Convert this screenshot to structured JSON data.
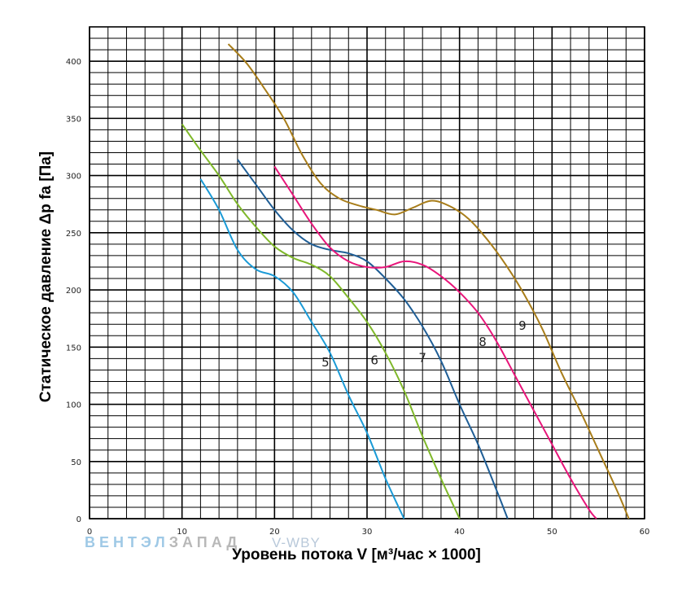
{
  "chart_data": {
    "type": "line",
    "xlabel": "Уровень потока V [м³/час × 1000]",
    "ylabel": "Статическое давление Δp fa [Па]",
    "xlim": [
      0,
      60
    ],
    "ylim": [
      0,
      430
    ],
    "x_ticks": [
      0,
      10,
      20,
      30,
      40,
      50,
      60
    ],
    "y_ticks": [
      0,
      50,
      100,
      150,
      200,
      250,
      300,
      350,
      400
    ],
    "grid": true,
    "series": [
      {
        "name": "5",
        "color": "#1a9ad6",
        "points": [
          [
            12,
            297
          ],
          [
            14,
            270
          ],
          [
            16,
            235
          ],
          [
            18,
            218
          ],
          [
            20,
            212
          ],
          [
            22,
            198
          ],
          [
            24,
            172
          ],
          [
            26,
            145
          ],
          [
            28,
            108
          ],
          [
            30,
            75
          ],
          [
            32,
            35
          ],
          [
            34,
            0
          ]
        ]
      },
      {
        "name": "6",
        "color": "#7fb82a",
        "points": [
          [
            10,
            345
          ],
          [
            12,
            322
          ],
          [
            14,
            300
          ],
          [
            16,
            275
          ],
          [
            18,
            255
          ],
          [
            20,
            238
          ],
          [
            22,
            228
          ],
          [
            24,
            222
          ],
          [
            26,
            212
          ],
          [
            28,
            193
          ],
          [
            30,
            172
          ],
          [
            32,
            145
          ],
          [
            34,
            112
          ],
          [
            36,
            72
          ],
          [
            38,
            35
          ],
          [
            40,
            0
          ]
        ]
      },
      {
        "name": "7",
        "color": "#1f5e96",
        "points": [
          [
            16,
            314
          ],
          [
            18,
            292
          ],
          [
            20,
            270
          ],
          [
            22,
            252
          ],
          [
            24,
            240
          ],
          [
            26,
            235
          ],
          [
            28,
            232
          ],
          [
            30,
            225
          ],
          [
            32,
            210
          ],
          [
            34,
            192
          ],
          [
            36,
            168
          ],
          [
            38,
            138
          ],
          [
            40,
            100
          ],
          [
            42,
            65
          ],
          [
            44,
            25
          ],
          [
            45.2,
            0
          ]
        ]
      },
      {
        "name": "8",
        "color": "#e8157a",
        "points": [
          [
            20,
            308
          ],
          [
            22,
            283
          ],
          [
            24,
            258
          ],
          [
            26,
            237
          ],
          [
            28,
            225
          ],
          [
            30,
            220
          ],
          [
            32,
            220
          ],
          [
            34,
            225
          ],
          [
            36,
            222
          ],
          [
            38,
            212
          ],
          [
            40,
            198
          ],
          [
            42,
            180
          ],
          [
            44,
            155
          ],
          [
            46,
            125
          ],
          [
            48,
            95
          ],
          [
            50,
            65
          ],
          [
            52,
            35
          ],
          [
            54,
            8
          ],
          [
            54.8,
            0
          ]
        ]
      },
      {
        "name": "9",
        "color": "#a87d1a",
        "points": [
          [
            15,
            415
          ],
          [
            17,
            398
          ],
          [
            19,
            375
          ],
          [
            21,
            350
          ],
          [
            23,
            318
          ],
          [
            25,
            293
          ],
          [
            27,
            280
          ],
          [
            29,
            274
          ],
          [
            31,
            270
          ],
          [
            33,
            266
          ],
          [
            35,
            272
          ],
          [
            37,
            278
          ],
          [
            39,
            273
          ],
          [
            41,
            262
          ],
          [
            43,
            244
          ],
          [
            45,
            222
          ],
          [
            47,
            196
          ],
          [
            49,
            165
          ],
          [
            51,
            128
          ],
          [
            53,
            95
          ],
          [
            55,
            60
          ],
          [
            57,
            25
          ],
          [
            58.3,
            0
          ]
        ]
      }
    ],
    "labels": [
      {
        "text": "5",
        "x": 25.5,
        "y": 133
      },
      {
        "text": "6",
        "x": 30.8,
        "y": 135
      },
      {
        "text": "7",
        "x": 36.0,
        "y": 137
      },
      {
        "text": "8",
        "x": 42.5,
        "y": 151
      },
      {
        "text": "9",
        "x": 46.8,
        "y": 165
      }
    ]
  },
  "watermark": {
    "brand_a": "ВЕНТЭЛ",
    "brand_b": "ЗАПАД",
    "product": "V-WBY"
  }
}
